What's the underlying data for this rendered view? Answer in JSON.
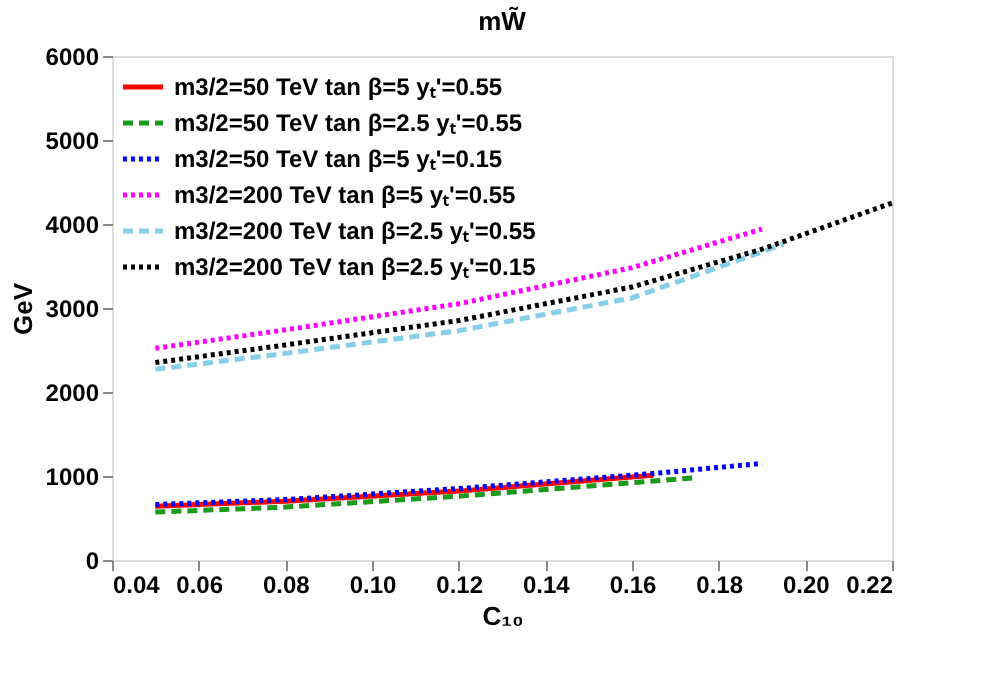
{
  "chart_data": {
    "type": "line",
    "title": "mW̃",
    "xlabel": "C₁₀",
    "ylabel": "GeV",
    "xlim": [
      0.04,
      0.22
    ],
    "xticks": [
      {
        "value": 0.04,
        "label": "0.04"
      },
      {
        "value": 0.06,
        "label": "0.06"
      },
      {
        "value": 0.08,
        "label": "0.08"
      },
      {
        "value": 0.1,
        "label": "0.10"
      },
      {
        "value": 0.12,
        "label": "0.12"
      },
      {
        "value": 0.14,
        "label": "0.14"
      },
      {
        "value": 0.16,
        "label": "0.16"
      },
      {
        "value": 0.18,
        "label": "0.18"
      },
      {
        "value": 0.2,
        "label": "0.20"
      },
      {
        "value": 0.22,
        "label": "0.22"
      }
    ],
    "ylim": [
      0,
      6000
    ],
    "yticks": [
      0,
      1000,
      2000,
      3000,
      4000,
      5000,
      6000
    ],
    "grid": false,
    "legend": "top left",
    "marker": "none",
    "series": [
      {
        "name": "m3/2=50 TeV   tan β=5    yₜ'=0.55",
        "color": "#ff0000",
        "line_style": "solid",
        "x": [
          0.05,
          0.08,
          0.12,
          0.165
        ],
        "values": [
          640,
          700,
          820,
          1010
        ]
      },
      {
        "name": "m3/2=50 TeV   tan β=2.5 yₜ'=0.55",
        "color": "#1a9a1a",
        "line_style": "dashed",
        "x": [
          0.05,
          0.08,
          0.12,
          0.175
        ],
        "values": [
          570,
          630,
          760,
          980
        ]
      },
      {
        "name": "m3/2=50 TeV   tan β=5    yₜ'=0.15",
        "color": "#0000ff",
        "line_style": "dotted",
        "x": [
          0.05,
          0.08,
          0.12,
          0.165,
          0.19
        ],
        "values": [
          660,
          720,
          850,
          1030,
          1150
        ]
      },
      {
        "name": "m3/2=200 TeV tan β=5    yₜ'=0.55",
        "color": "#ff00ff",
        "line_style": "dotted",
        "x": [
          0.05,
          0.08,
          0.12,
          0.16,
          0.19
        ],
        "values": [
          2520,
          2740,
          3050,
          3480,
          3940
        ]
      },
      {
        "name": "m3/2=200 TeV tan β=2.5 yₜ'=0.55",
        "color": "#87ceeb",
        "line_style": "dashed",
        "x": [
          0.05,
          0.08,
          0.12,
          0.16,
          0.195
        ],
        "values": [
          2270,
          2460,
          2730,
          3120,
          3760
        ]
      },
      {
        "name": "m3/2=200 TeV tan β=2.5 yₜ'=0.15",
        "color": "#000000",
        "line_style": "dotted",
        "x": [
          0.05,
          0.08,
          0.12,
          0.16,
          0.19,
          0.22
        ],
        "values": [
          2350,
          2560,
          2850,
          3250,
          3700,
          4250
        ]
      }
    ]
  }
}
